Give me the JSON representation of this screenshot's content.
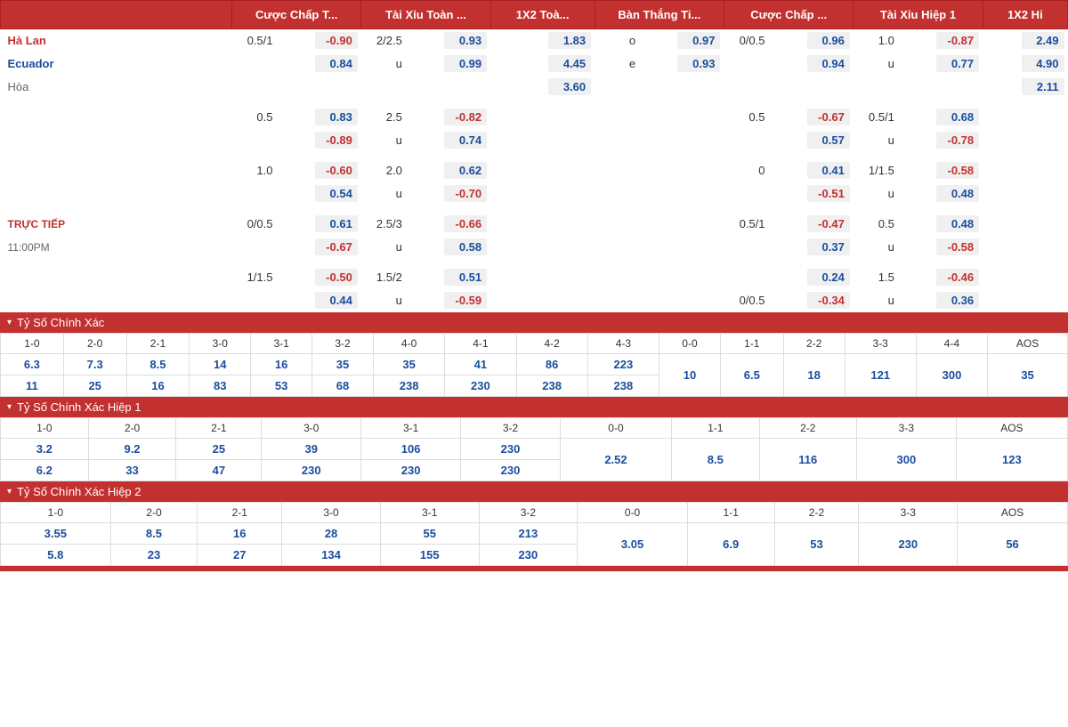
{
  "headers": [
    "Cược Chấp T...",
    "Tài Xỉu Toàn ...",
    "1X2 Toà...",
    "Bàn Thắng Ti...",
    "Cược Chấp ...",
    "Tài Xỉu Hiệp 1",
    "1X2 Hi"
  ],
  "teams": {
    "home": "Hà Lan",
    "away": "Ecuador",
    "draw": "Hòa"
  },
  "live": {
    "label": "TRỰC TIẾP",
    "time": "11:00PM"
  },
  "mainRows": [
    {
      "team": "home",
      "hdp1": "0.5/1",
      "odds1": "-0.90",
      "hdp2": "2/2.5",
      "odds2": "0.93",
      "odds3": "1.83",
      "hdp4": "o",
      "odds4": "0.97",
      "hdp5": "0/0.5",
      "odds5": "0.96",
      "hdp6": "1.0",
      "odds6": "-0.87",
      "odds7": "2.49"
    },
    {
      "team": "away",
      "hdp1": "",
      "odds1": "0.84",
      "hdp2": "u",
      "odds2": "0.99",
      "odds3": "4.45",
      "hdp4": "e",
      "odds4": "0.93",
      "hdp5": "",
      "odds5": "0.94",
      "hdp6": "u",
      "odds6": "0.77",
      "odds7": "4.90"
    },
    {
      "team": "draw",
      "odds3": "3.60",
      "odds7": "2.11"
    }
  ],
  "extraRows": [
    {
      "hdp1": "0.5",
      "odds1": "0.83",
      "hdp2": "2.5",
      "odds2": "-0.82",
      "hdp5": "0.5",
      "odds5": "-0.67",
      "hdp6": "0.5/1",
      "odds6": "0.68"
    },
    {
      "hdp1": "",
      "odds1": "-0.89",
      "hdp2": "u",
      "odds2": "0.74",
      "hdp5": "",
      "odds5": "0.57",
      "hdp6": "u",
      "odds6": "-0.78"
    },
    {
      "hdp1": "1.0",
      "odds1": "-0.60",
      "hdp2": "2.0",
      "odds2": "0.62",
      "hdp5": "0",
      "odds5": "0.41",
      "hdp6": "1/1.5",
      "odds6": "-0.58"
    },
    {
      "hdp1": "",
      "odds1": "0.54",
      "hdp2": "u",
      "odds2": "-0.70",
      "hdp5": "",
      "odds5": "-0.51",
      "hdp6": "u",
      "odds6": "0.48"
    },
    {
      "hdp1": "0/0.5",
      "odds1": "0.61",
      "hdp2": "2.5/3",
      "odds2": "-0.66",
      "hdp5": "0.5/1",
      "odds5": "-0.47",
      "hdp6": "0.5",
      "odds6": "0.48",
      "showLive": true
    },
    {
      "hdp1": "",
      "odds1": "-0.67",
      "hdp2": "u",
      "odds2": "0.58",
      "hdp5": "",
      "odds5": "0.37",
      "hdp6": "u",
      "odds6": "-0.58",
      "showTime": true
    },
    {
      "hdp1": "1/1.5",
      "odds1": "-0.50",
      "hdp2": "1.5/2",
      "odds2": "0.51",
      "hdp5": "",
      "odds5": "0.24",
      "hdp6": "1.5",
      "odds6": "-0.46"
    },
    {
      "hdp1": "",
      "odds1": "0.44",
      "hdp2": "u",
      "odds2": "-0.59",
      "hdp5": "0/0.5",
      "odds5": "-0.34",
      "hdp6": "u",
      "odds6": "0.36"
    }
  ],
  "correctScore": {
    "title": "Tỷ Số Chính Xác",
    "headers": [
      "1-0",
      "2-0",
      "2-1",
      "3-0",
      "3-1",
      "3-2",
      "4-0",
      "4-1",
      "4-2",
      "4-3",
      "0-0",
      "1-1",
      "2-2",
      "3-3",
      "4-4",
      "AOS"
    ],
    "row1": [
      "6.3",
      "7.3",
      "8.5",
      "14",
      "16",
      "35",
      "35",
      "41",
      "86",
      "223",
      "10",
      "6.5",
      "18",
      "121",
      "300",
      "35"
    ],
    "row2": [
      "11",
      "25",
      "16",
      "83",
      "53",
      "68",
      "238",
      "230",
      "238",
      "238",
      "",
      "",
      "",
      "",
      "",
      ""
    ]
  },
  "correctScoreH1": {
    "title": "Tỷ Số Chính Xác Hiệp 1",
    "headers": [
      "1-0",
      "2-0",
      "2-1",
      "3-0",
      "3-1",
      "3-2",
      "0-0",
      "1-1",
      "2-2",
      "3-3",
      "AOS"
    ],
    "row1": [
      "3.2",
      "9.2",
      "25",
      "39",
      "106",
      "230",
      "2.52",
      "8.5",
      "116",
      "300",
      "123"
    ],
    "row2": [
      "6.2",
      "33",
      "47",
      "230",
      "230",
      "230",
      "",
      "",
      "",
      "",
      ""
    ]
  },
  "correctScoreH2": {
    "title": "Tỷ Số Chính Xác Hiệp 2",
    "headers": [
      "1-0",
      "2-0",
      "2-1",
      "3-0",
      "3-1",
      "3-2",
      "0-0",
      "1-1",
      "2-2",
      "3-3",
      "AOS"
    ],
    "row1": [
      "3.55",
      "8.5",
      "16",
      "28",
      "55",
      "213",
      "3.05",
      "6.9",
      "53",
      "230",
      "56"
    ],
    "row2": [
      "5.8",
      "23",
      "27",
      "134",
      "155",
      "230",
      "",
      "",
      "",
      "",
      ""
    ]
  }
}
